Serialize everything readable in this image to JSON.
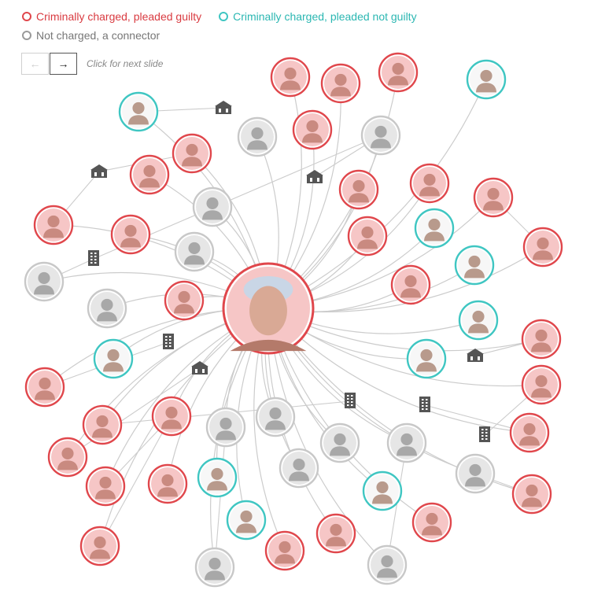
{
  "legend": {
    "guilty": "Criminally charged, pleaded guilty",
    "not_guilty": "Criminally charged, pleaded not guilty",
    "connector": "Not charged, a connector"
  },
  "nav": {
    "prev_icon": "arrow-left-icon",
    "next_icon": "arrow-right-icon",
    "prev_glyph": "←",
    "next_glyph": "→",
    "hint": "Click for next slide"
  },
  "colors": {
    "guilty_ring": "#e0474c",
    "guilty_fill": "#f6c6c6",
    "not_guilty_ring": "#3fc6c2",
    "not_guilty_fill": "#f7f7f7",
    "connector_ring": "#c8c8c8",
    "connector_fill": "#e6e6e6",
    "link": "#cccccc",
    "building": "#555555"
  },
  "network": {
    "center_status": "guilty",
    "node_statuses": [
      "guilty",
      "guilty",
      "guilty",
      "not_guilty",
      "not_guilty",
      "connector",
      "guilty",
      "guilty",
      "connector",
      "guilty",
      "guilty",
      "guilty",
      "guilty",
      "guilty",
      "connector",
      "guilty",
      "not_guilty",
      "guilty",
      "connector",
      "guilty",
      "not_guilty",
      "connector",
      "guilty",
      "guilty",
      "connector",
      "not_guilty",
      "guilty",
      "not_guilty",
      "not_guilty",
      "guilty",
      "guilty",
      "guilty",
      "guilty",
      "connector",
      "connector",
      "connector",
      "connector",
      "connector",
      "guilty",
      "connector",
      "guilty",
      "guilty",
      "not_guilty",
      "guilty",
      "guilty",
      "not_guilty",
      "not_guilty",
      "guilty",
      "guilty",
      "guilty",
      "connector",
      "connector",
      "guilty"
    ],
    "building_icons": [
      "school-icon",
      "school-icon",
      "school-icon",
      "office-building-icon",
      "office-building-icon",
      "school-icon",
      "office-building-icon",
      "office-building-icon",
      "school-icon",
      "office-building-icon"
    ]
  }
}
